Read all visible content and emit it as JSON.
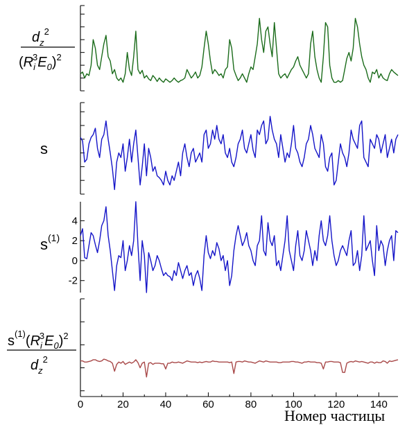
{
  "chart_data": {
    "type": "line",
    "x": {
      "label": "Номер частицы",
      "range": [
        0,
        149
      ],
      "ticks": [
        0,
        20,
        40,
        60,
        80,
        100,
        120,
        140
      ],
      "tick_labels": [
        "0",
        "20",
        "40",
        "60",
        "80",
        "100",
        "120",
        "140"
      ]
    },
    "panels": [
      {
        "id": "dz2",
        "ylabel_numerator": [
          "d",
          "z",
          "2"
        ],
        "ylabel_denominator": [
          "(",
          "R",
          "i",
          "3",
          "E",
          "0",
          ")",
          "2"
        ],
        "ylim": [
          0,
          100
        ],
        "ticks": [
          0,
          15,
          30,
          45,
          60,
          75,
          90,
          100
        ],
        "tick_labels": [],
        "color": "#1a6b1a",
        "anchor_x": [
          0,
          1,
          2,
          3,
          4,
          5,
          6,
          7,
          8,
          9,
          10,
          11,
          12,
          13,
          14,
          15,
          16,
          17,
          18,
          19,
          20,
          21,
          22,
          23,
          24,
          25,
          26,
          27,
          28,
          29,
          30,
          31,
          32,
          33,
          34,
          35,
          36,
          37,
          38,
          39,
          40,
          41,
          42,
          43,
          44,
          45,
          46,
          47,
          48,
          49,
          50,
          51,
          52,
          53,
          54,
          55,
          56,
          57,
          58,
          59,
          60,
          61,
          62,
          63,
          64,
          65,
          66,
          67,
          68,
          69,
          70,
          71,
          72,
          73,
          74,
          75,
          76,
          77,
          78,
          79,
          80,
          81,
          82,
          83,
          84,
          85,
          86,
          87,
          88,
          89,
          90,
          91,
          92,
          93,
          94,
          95,
          96,
          97,
          98,
          99,
          100,
          101,
          102,
          103,
          104,
          105,
          106,
          107,
          108,
          109,
          110,
          111,
          112,
          113,
          114,
          115,
          116,
          117,
          118,
          119,
          120,
          121,
          122,
          123,
          124,
          125,
          126,
          127,
          128,
          129,
          130,
          131,
          132,
          133,
          134,
          135,
          136,
          137,
          138,
          139,
          140,
          141,
          142,
          143,
          144,
          145,
          146,
          147,
          148,
          149
        ],
        "anchor_y": [
          20,
          22,
          15,
          20,
          18,
          30,
          60,
          50,
          30,
          25,
          40,
          55,
          65,
          40,
          35,
          20,
          25,
          15,
          12,
          15,
          10,
          20,
          45,
          25,
          18,
          40,
          70,
          25,
          20,
          24,
          15,
          18,
          14,
          12,
          18,
          15,
          11,
          15,
          12,
          10,
          14,
          12,
          10,
          12,
          15,
          12,
          10,
          12,
          13,
          15,
          25,
          20,
          15,
          18,
          22,
          15,
          18,
          28,
          50,
          70,
          55,
          35,
          20,
          25,
          22,
          18,
          20,
          15,
          25,
          28,
          60,
          50,
          25,
          18,
          12,
          15,
          20,
          15,
          10,
          20,
          28,
          25,
          40,
          55,
          85,
          60,
          45,
          70,
          75,
          55,
          40,
          80,
          50,
          20,
          15,
          18,
          20,
          15,
          20,
          25,
          28,
          35,
          40,
          30,
          25,
          20,
          15,
          20,
          55,
          70,
          40,
          25,
          15,
          10,
          40,
          80,
          75,
          30,
          15,
          10,
          10,
          12,
          10,
          12,
          25,
          38,
          45,
          35,
          50,
          85,
          75,
          55,
          40,
          30,
          25,
          15,
          10,
          22,
          20,
          25,
          15,
          20,
          15,
          13,
          12,
          20,
          25,
          22,
          20,
          18
        ],
        "series_label": "d_z^2/(R_i^3 E_0)^2"
      },
      {
        "id": "s",
        "ylabel": "s",
        "ylim": [
          0,
          100
        ],
        "ticks": [
          0,
          15,
          30,
          45,
          60,
          75,
          90,
          100
        ],
        "tick_labels": [],
        "color": "#1414c8",
        "anchor_x": [
          0,
          1,
          2,
          3,
          4,
          5,
          6,
          7,
          8,
          9,
          10,
          11,
          12,
          13,
          14,
          15,
          16,
          17,
          18,
          19,
          20,
          21,
          22,
          23,
          24,
          25,
          26,
          27,
          28,
          29,
          30,
          31,
          32,
          33,
          34,
          35,
          36,
          37,
          38,
          39,
          40,
          41,
          42,
          43,
          44,
          45,
          46,
          47,
          48,
          49,
          50,
          51,
          52,
          53,
          54,
          55,
          56,
          57,
          58,
          59,
          60,
          61,
          62,
          63,
          64,
          65,
          66,
          67,
          68,
          69,
          70,
          71,
          72,
          73,
          74,
          75,
          76,
          77,
          78,
          79,
          80,
          81,
          82,
          83,
          84,
          85,
          86,
          87,
          88,
          89,
          90,
          91,
          92,
          93,
          94,
          95,
          96,
          97,
          98,
          99,
          100,
          101,
          102,
          103,
          104,
          105,
          106,
          107,
          108,
          109,
          110,
          111,
          112,
          113,
          114,
          115,
          116,
          117,
          118,
          119,
          120,
          121,
          122,
          123,
          124,
          125,
          126,
          127,
          128,
          129,
          130,
          131,
          132,
          133,
          134,
          135,
          136,
          137,
          138,
          139,
          140,
          141,
          142,
          143,
          144,
          145,
          146,
          147,
          148,
          149
        ],
        "anchor_y": [
          62,
          58,
          35,
          38,
          55,
          62,
          65,
          72,
          50,
          40,
          60,
          65,
          80,
          60,
          45,
          28,
          5,
          35,
          45,
          40,
          55,
          25,
          40,
          60,
          35,
          55,
          70,
          40,
          10,
          30,
          55,
          20,
          50,
          40,
          25,
          30,
          20,
          18,
          15,
          10,
          25,
          15,
          10,
          20,
          15,
          25,
          35,
          20,
          45,
          55,
          40,
          30,
          45,
          50,
          35,
          40,
          45,
          35,
          65,
          70,
          50,
          55,
          70,
          60,
          75,
          60,
          55,
          65,
          45,
          40,
          50,
          35,
          30,
          40,
          55,
          60,
          70,
          50,
          45,
          55,
          65,
          48,
          40,
          70,
          65,
          75,
          80,
          55,
          60,
          85,
          70,
          60,
          55,
          40,
          65,
          50,
          35,
          45,
          40,
          55,
          75,
          50,
          45,
          35,
          30,
          40,
          55,
          60,
          75,
          65,
          50,
          45,
          40,
          65,
          55,
          30,
          25,
          40,
          45,
          10,
          15,
          35,
          55,
          45,
          40,
          30,
          45,
          70,
          60,
          55,
          50,
          75,
          80,
          40,
          35,
          30,
          60,
          55,
          50,
          65,
          60,
          45,
          55,
          65,
          40,
          50,
          60,
          45,
          60,
          65
        ],
        "series_label": "s"
      },
      {
        "id": "s1",
        "ylabel": "s",
        "ylabel_sup": "(1)",
        "ylim": [
          -3.2,
          5.9
        ],
        "ticks": [
          -2,
          0,
          2,
          4
        ],
        "tick_labels": [
          "-2",
          "0",
          "2",
          "4"
        ],
        "color": "#1414c8",
        "anchor_x": [
          0,
          1,
          2,
          3,
          4,
          5,
          6,
          7,
          8,
          9,
          10,
          11,
          12,
          13,
          14,
          15,
          16,
          17,
          18,
          19,
          20,
          21,
          22,
          23,
          24,
          25,
          26,
          27,
          28,
          29,
          30,
          31,
          32,
          33,
          34,
          35,
          36,
          37,
          38,
          39,
          40,
          41,
          42,
          43,
          44,
          45,
          46,
          47,
          48,
          49,
          50,
          51,
          52,
          53,
          54,
          55,
          56,
          57,
          58,
          59,
          60,
          61,
          62,
          63,
          64,
          65,
          66,
          67,
          68,
          69,
          70,
          71,
          72,
          73,
          74,
          75,
          76,
          77,
          78,
          79,
          80,
          81,
          82,
          83,
          84,
          85,
          86,
          87,
          88,
          89,
          90,
          91,
          92,
          93,
          94,
          95,
          96,
          97,
          98,
          99,
          100,
          101,
          102,
          103,
          104,
          105,
          106,
          107,
          108,
          109,
          110,
          111,
          112,
          113,
          114,
          115,
          116,
          117,
          118,
          119,
          120,
          121,
          122,
          123,
          124,
          125,
          126,
          127,
          128,
          129,
          130,
          131,
          132,
          133,
          134,
          135,
          136,
          137,
          138,
          139,
          140,
          141,
          142,
          143,
          144,
          145,
          146,
          147,
          148,
          149
        ],
        "anchor_y": [
          2.5,
          3.2,
          0.3,
          0.2,
          1.5,
          2.8,
          2.5,
          1.6,
          0.8,
          2.0,
          3.5,
          4.0,
          5.4,
          2.5,
          1.0,
          -1.0,
          -3.0,
          -0.5,
          0.5,
          0.3,
          2.0,
          -1.0,
          0.0,
          1.5,
          0.5,
          2.0,
          5.9,
          1.5,
          -2.0,
          2.0,
          0.5,
          -3.2,
          0.8,
          0.0,
          -1.0,
          -0.5,
          0.5,
          0.0,
          -0.8,
          -1.5,
          -1.2,
          -1.5,
          -1.6,
          -2.0,
          -1.0,
          -1.5,
          -0.2,
          -1.0,
          -1.8,
          -1.0,
          -0.5,
          -1.5,
          -1.2,
          -2.5,
          -1.5,
          -1.0,
          -1.8,
          -3.0,
          0.5,
          2.5,
          0.8,
          0.2,
          1.0,
          0.5,
          1.8,
          1.2,
          0.0,
          0.5,
          -1.0,
          0.0,
          -2.5,
          -1.5,
          1.0,
          2.5,
          3.5,
          2.5,
          1.5,
          2.0,
          2.8,
          1.5,
          1.0,
          0.0,
          -0.5,
          1.5,
          2.0,
          4.5,
          1.0,
          0.5,
          3.8,
          2.0,
          1.5,
          2.5,
          -0.5,
          0.0,
          -1.0,
          0.5,
          2.0,
          4.5,
          1.0,
          0.0,
          -1.0,
          1.5,
          3.0,
          0.5,
          0.0,
          1.0,
          3.0,
          2.0,
          1.0,
          -0.5,
          1.0,
          0.0,
          2.5,
          4.0,
          2.0,
          1.5,
          2.5,
          4.5,
          2.0,
          0.5,
          -0.5,
          0.0,
          1.0,
          1.5,
          1.0,
          0.5,
          2.0,
          3.0,
          -0.5,
          -0.2,
          1.0,
          -1.0,
          0.5,
          4.5,
          1.0,
          1.5,
          2.0,
          0.0,
          -1.5,
          3.5,
          1.0,
          2.0,
          1.5,
          -0.5,
          1.0,
          2.0,
          2.5,
          0.0,
          3.0,
          2.8
        ],
        "series_label": "s^(1)"
      },
      {
        "id": "ratio",
        "ylabel_numerator": [
          "s",
          "(1)",
          "(",
          "R",
          "i",
          "3",
          "E",
          "0",
          ")",
          "2"
        ],
        "ylabel_denominator": [
          "d",
          "z",
          "2"
        ],
        "ylim": [
          -5,
          80
        ],
        "ticks": [
          0,
          20,
          40,
          60,
          80
        ],
        "tick_labels": [],
        "color": "#a84848",
        "anchor_x": [
          0,
          1,
          2,
          3,
          4,
          5,
          6,
          7,
          8,
          9,
          10,
          11,
          12,
          13,
          14,
          15,
          16,
          17,
          18,
          19,
          20,
          21,
          22,
          23,
          24,
          25,
          26,
          27,
          28,
          29,
          30,
          31,
          32,
          33,
          34,
          35,
          36,
          37,
          38,
          39,
          40,
          41,
          42,
          43,
          44,
          45,
          46,
          47,
          48,
          49,
          50,
          51,
          52,
          53,
          54,
          55,
          56,
          57,
          58,
          59,
          60,
          61,
          62,
          63,
          64,
          65,
          66,
          67,
          68,
          69,
          70,
          71,
          72,
          73,
          74,
          75,
          76,
          77,
          78,
          79,
          80,
          81,
          82,
          83,
          84,
          85,
          86,
          87,
          88,
          89,
          90,
          91,
          92,
          93,
          94,
          95,
          96,
          97,
          98,
          99,
          100,
          101,
          102,
          103,
          104,
          105,
          106,
          107,
          108,
          109,
          110,
          111,
          112,
          113,
          114,
          115,
          116,
          117,
          118,
          119,
          120,
          121,
          122,
          123,
          124,
          125,
          126,
          127,
          128,
          129,
          130,
          131,
          132,
          133,
          134,
          135,
          136,
          137,
          138,
          139,
          140,
          141,
          142,
          143,
          144,
          145,
          146,
          147,
          148,
          149
        ],
        "anchor_y": [
          26,
          26,
          25,
          25,
          25.5,
          26,
          27,
          27,
          26,
          25.5,
          26,
          27.5,
          27,
          26,
          25.5,
          24,
          17,
          23,
          25,
          24,
          25.5,
          23,
          24,
          25,
          24,
          25,
          27,
          24.5,
          20,
          24,
          25,
          12,
          24,
          24.5,
          23,
          24,
          24,
          24,
          23.5,
          23.5,
          19,
          24,
          24,
          25,
          24.5,
          24.5,
          25,
          24.5,
          24,
          25,
          26,
          25.5,
          25,
          25,
          25,
          24.5,
          25,
          24.5,
          25,
          25.5,
          25,
          25,
          26,
          25.5,
          25.5,
          25,
          25,
          25,
          25,
          25,
          24.5,
          25,
          15,
          25,
          25.5,
          25.5,
          25,
          26,
          25.5,
          25,
          25,
          24.5,
          24,
          25,
          26,
          25.5,
          25,
          26,
          25.5,
          25,
          25,
          25,
          25,
          24.5,
          24.5,
          25,
          25,
          25,
          25,
          25.5,
          25.5,
          25,
          25,
          24.5,
          24,
          25,
          25,
          25.5,
          25,
          25,
          25,
          24.5,
          24.5,
          24,
          19,
          25,
          25,
          25.5,
          25.5,
          25,
          25,
          25,
          24.5,
          16,
          16,
          24,
          25,
          25.5,
          25,
          26,
          25.5,
          25,
          25.5,
          25,
          24.5,
          24,
          25,
          25,
          24,
          25,
          24.5,
          24.5,
          26,
          25.5,
          24,
          26,
          25.5,
          26,
          26.5,
          27
        ],
        "series_label": "s^(1)(R_i^3 E_0)^2/d_z^2"
      }
    ]
  }
}
